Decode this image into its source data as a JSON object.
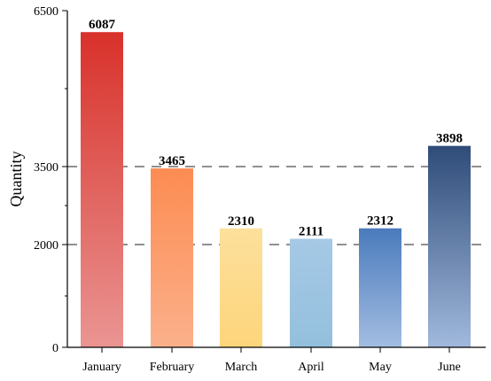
{
  "chart_data": {
    "type": "bar",
    "ylabel": "Quantity",
    "categories": [
      "January",
      "February",
      "March",
      "April",
      "May",
      "June"
    ],
    "values": [
      6087,
      3465,
      2310,
      2111,
      2312,
      3898
    ],
    "data_labels": [
      "6087",
      "3465",
      "2310",
      "2111",
      "2312",
      "3898"
    ],
    "ylim": [
      0,
      6500
    ],
    "yticks": [
      0,
      2000,
      3500,
      6500
    ],
    "yticks_labels": [
      "0",
      "2000",
      "3500",
      "6500"
    ],
    "y_scale": "piecewise-linear",
    "reference_lines": [
      2000,
      3500
    ],
    "grid": false,
    "bar_gradients": [
      [
        "#d8312a",
        "#ea9593"
      ],
      [
        "#fc8c52",
        "#fbb08b"
      ],
      [
        "#fde09c",
        "#fdd57b"
      ],
      [
        "#a5c9e5",
        "#93c0de"
      ],
      [
        "#4a7bbc",
        "#a3bde2"
      ],
      [
        "#2f4b78",
        "#a0b9dd"
      ]
    ]
  }
}
